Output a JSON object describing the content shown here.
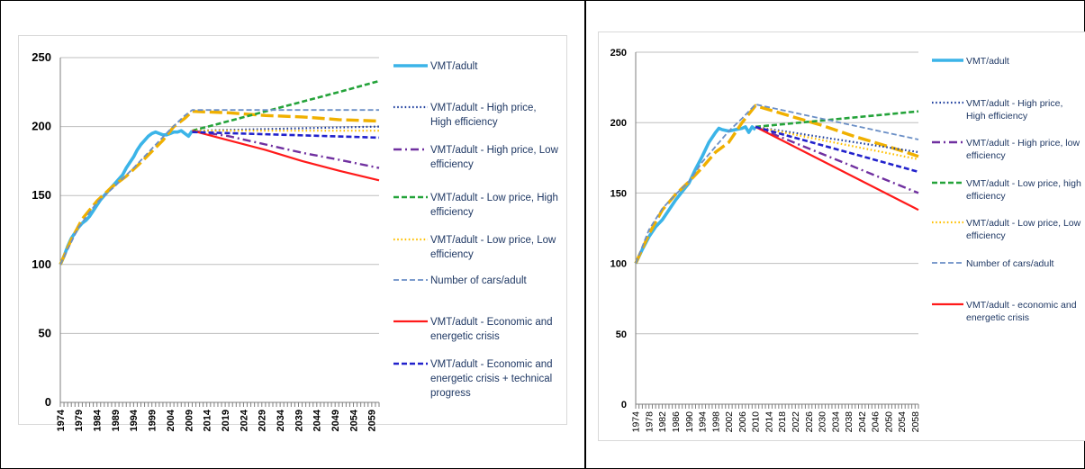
{
  "chart_data": [
    {
      "type": "line",
      "panel": "left",
      "x": [
        1974,
        1979,
        1984,
        1989,
        1994,
        1999,
        2004,
        2009,
        2014,
        2019,
        2024,
        2029,
        2034,
        2039,
        2044,
        2049,
        2054,
        2059,
        2061
      ],
      "x_tick_labels": [
        "1974",
        "1979",
        "1984",
        "1989",
        "1994",
        "1999",
        "2004",
        "2009",
        "2014",
        "2019",
        "2024",
        "2029",
        "2034",
        "2039",
        "2044",
        "2049",
        "2054",
        "2059"
      ],
      "y_tick_labels": [
        "0",
        "50",
        "100",
        "150",
        "200",
        "250"
      ],
      "ylim": [
        0,
        250
      ],
      "xlim": [
        1974,
        2061
      ],
      "grid": "horizontal",
      "legend_placement": "right",
      "series": [
        {
          "name": "VMT/adult",
          "color": "#3bb4e8",
          "style": "solid-thick",
          "points": [
            [
              1974,
              100
            ],
            [
              1975,
              106
            ],
            [
              1976,
              113
            ],
            [
              1977,
              119
            ],
            [
              1978,
              123
            ],
            [
              1979,
              127
            ],
            [
              1980,
              130
            ],
            [
              1981,
              132
            ],
            [
              1982,
              135
            ],
            [
              1983,
              139
            ],
            [
              1984,
              143
            ],
            [
              1985,
              147
            ],
            [
              1986,
              150
            ],
            [
              1987,
              153
            ],
            [
              1988,
              156
            ],
            [
              1989,
              159
            ],
            [
              1990,
              162
            ],
            [
              1991,
              165
            ],
            [
              1992,
              170
            ],
            [
              1993,
              174
            ],
            [
              1994,
              178
            ],
            [
              1995,
              183
            ],
            [
              1996,
              187
            ],
            [
              1997,
              190
            ],
            [
              1998,
              193
            ],
            [
              1999,
              195
            ],
            [
              2000,
              196
            ],
            [
              2001,
              195
            ],
            [
              2002,
              194
            ],
            [
              2003,
              194
            ],
            [
              2004,
              195
            ],
            [
              2005,
              196
            ],
            [
              2006,
              196
            ],
            [
              2007,
              197
            ],
            [
              2008,
              195
            ],
            [
              2009,
              193
            ],
            [
              2010,
              197
            ]
          ]
        },
        {
          "name": "VMT/adult - High price, High efficiency",
          "color": "#1f3f9e",
          "style": "dotted",
          "points": [
            [
              2010,
              197
            ],
            [
              2061,
              200
            ]
          ]
        },
        {
          "name": "VMT/adult - High price, Low efficiency",
          "color": "#7030a0",
          "style": "dashdot",
          "points": [
            [
              2010,
              197
            ],
            [
              2020,
              193
            ],
            [
              2030,
              187
            ],
            [
              2040,
              181
            ],
            [
              2050,
              176
            ],
            [
              2061,
              170
            ]
          ]
        },
        {
          "name": "VMT/adult - Low price, High efficiency",
          "color": "#24a33a",
          "style": "dashed",
          "points": [
            [
              2010,
              197
            ],
            [
              2020,
              204
            ],
            [
              2030,
              211
            ],
            [
              2040,
              218
            ],
            [
              2050,
              225
            ],
            [
              2061,
              233
            ]
          ]
        },
        {
          "name": "VMT/adult - Low price, Low efficiency",
          "color": "#ffc000",
          "style": "dotted",
          "points": [
            [
              2010,
              197
            ],
            [
              2061,
              197
            ]
          ]
        },
        {
          "name": "Number of cars/adult",
          "color": "#6b8fc6",
          "style": "dashed-thin",
          "points": [
            [
              1974,
              100
            ],
            [
              1979,
              127
            ],
            [
              1984,
              145
            ],
            [
              1989,
              157
            ],
            [
              1994,
              170
            ],
            [
              1999,
              184
            ],
            [
              2004,
              198
            ],
            [
              2008,
              208
            ],
            [
              2010,
              212
            ],
            [
              2061,
              212
            ]
          ]
        },
        {
          "name": "VMT/adult - Economic and energetic crisis",
          "color": "#ff1a1a",
          "style": "solid",
          "points": [
            [
              2010,
              197
            ],
            [
              2020,
              190
            ],
            [
              2030,
              183
            ],
            [
              2040,
              175
            ],
            [
              2050,
              168
            ],
            [
              2061,
              161
            ]
          ]
        },
        {
          "name": "VMT/adult - Economic and energetic crisis + technical progress",
          "color": "#2222cc",
          "style": "dashed",
          "points": [
            [
              2010,
              196
            ],
            [
              2061,
              192
            ]
          ]
        },
        {
          "name": "",
          "color": "#f0b000",
          "style": "longdash-thick",
          "points": [
            [
              1974,
              100
            ],
            [
              1977,
              118
            ],
            [
              1980,
              133
            ],
            [
              1984,
              146
            ],
            [
              1988,
              156
            ],
            [
              1992,
              164
            ],
            [
              1996,
              174
            ],
            [
              1999,
              182
            ],
            [
              2002,
              190
            ],
            [
              2005,
              200
            ],
            [
              2008,
              206
            ],
            [
              2010,
              211
            ],
            [
              2020,
              210
            ],
            [
              2030,
              208
            ],
            [
              2040,
              207
            ],
            [
              2050,
              205
            ],
            [
              2061,
              204
            ]
          ]
        }
      ],
      "legend": [
        {
          "label": "VMT/adult",
          "style": "solid-thick",
          "color": "#3bb4e8"
        },
        {
          "label": "VMT/adult - High price, High efficiency",
          "style": "dotted",
          "color": "#1f3f9e"
        },
        {
          "label": "VMT/adult - High price, Low efficiency",
          "style": "dashdot",
          "color": "#7030a0"
        },
        {
          "label": "VMT/adult - Low price, High efficiency",
          "style": "dashed",
          "color": "#24a33a"
        },
        {
          "label": "VMT/adult - Low price, Low efficiency",
          "style": "dotted",
          "color": "#ffc000"
        },
        {
          "label": "Number of cars/adult",
          "style": "dashed-thin",
          "color": "#6b8fc6"
        },
        {
          "label": "VMT/adult - Economic and energetic crisis",
          "style": "solid",
          "color": "#ff1a1a"
        },
        {
          "label": "VMT/adult - Economic and energetic crisis + technical progress",
          "style": "dashed",
          "color": "#2222cc"
        }
      ]
    },
    {
      "type": "line",
      "panel": "right",
      "x": [
        1974,
        1978,
        1982,
        1986,
        1990,
        1994,
        1998,
        2002,
        2006,
        2010,
        2014,
        2018,
        2022,
        2026,
        2030,
        2034,
        2038,
        2042,
        2046,
        2050,
        2054,
        2058,
        2059
      ],
      "x_tick_labels": [
        "1974",
        "1978",
        "1982",
        "1986",
        "1990",
        "1994",
        "1998",
        "2002",
        "2006",
        "2010",
        "2014",
        "2018",
        "2022",
        "2026",
        "2030",
        "2034",
        "2038",
        "2042",
        "2046",
        "2050",
        "2054",
        "2058"
      ],
      "y_tick_labels": [
        "0",
        "50",
        "100",
        "150",
        "200",
        "250"
      ],
      "ylim": [
        0,
        250
      ],
      "xlim": [
        1974,
        2059
      ],
      "grid": "horizontal",
      "legend_placement": "right",
      "series": [
        {
          "name": "VMT/adult",
          "color": "#3bb4e8",
          "style": "solid-thick",
          "points": [
            [
              1974,
              100
            ],
            [
              1976,
              110
            ],
            [
              1978,
              119
            ],
            [
              1980,
              126
            ],
            [
              1982,
              131
            ],
            [
              1984,
              138
            ],
            [
              1986,
              145
            ],
            [
              1988,
              151
            ],
            [
              1990,
              157
            ],
            [
              1992,
              167
            ],
            [
              1994,
              176
            ],
            [
              1996,
              186
            ],
            [
              1998,
              193
            ],
            [
              1999,
              196
            ],
            [
              2000,
              195
            ],
            [
              2002,
              194
            ],
            [
              2004,
              195
            ],
            [
              2006,
              196
            ],
            [
              2007,
              197
            ],
            [
              2008,
              193
            ],
            [
              2009,
              197
            ],
            [
              2010,
              195
            ]
          ]
        },
        {
          "name": "VMT/adult - High price, High efficiency",
          "color": "#1f3f9e",
          "style": "dotted",
          "points": [
            [
              2010,
              197
            ],
            [
              2059,
              179
            ]
          ]
        },
        {
          "name": "VMT/adult - High price, low efficiency",
          "color": "#7030a0",
          "style": "dashdot",
          "points": [
            [
              2010,
              197
            ],
            [
              2059,
              150
            ]
          ]
        },
        {
          "name": "VMT/adult - Low price, high efficiency",
          "color": "#24a33a",
          "style": "dashed",
          "points": [
            [
              2010,
              197
            ],
            [
              2059,
              208
            ]
          ]
        },
        {
          "name": "VMT/adult - Low price, Low efficiency",
          "color": "#ffc000",
          "style": "dotted",
          "points": [
            [
              2010,
              197
            ],
            [
              2059,
              174
            ]
          ]
        },
        {
          "name": "Number of cars/adult",
          "color": "#6b8fc6",
          "style": "dashed-thin",
          "points": [
            [
              1974,
              100
            ],
            [
              1978,
              124
            ],
            [
              1982,
              139
            ],
            [
              1986,
              149
            ],
            [
              1990,
              158
            ],
            [
              1994,
              172
            ],
            [
              1998,
              183
            ],
            [
              2002,
              194
            ],
            [
              2006,
              203
            ],
            [
              2010,
              213
            ],
            [
              2059,
              188
            ]
          ]
        },
        {
          "name": "VMT/adult - economic and energetic crisis",
          "color": "#ff1a1a",
          "style": "solid",
          "points": [
            [
              2010,
              197
            ],
            [
              2059,
              138
            ]
          ]
        },
        {
          "name": "",
          "color": "#2222cc",
          "style": "dashed",
          "points": [
            [
              2010,
              197
            ],
            [
              2059,
              165
            ]
          ]
        },
        {
          "name": "",
          "color": "#f0b000",
          "style": "longdash-thick",
          "points": [
            [
              1974,
              100
            ],
            [
              1978,
              121
            ],
            [
              1982,
              138
            ],
            [
              1986,
              149
            ],
            [
              1990,
              158
            ],
            [
              1994,
              168
            ],
            [
              1998,
              179
            ],
            [
              2002,
              186
            ],
            [
              2006,
              200
            ],
            [
              2010,
              212
            ],
            [
              2020,
              205
            ],
            [
              2030,
              198
            ],
            [
              2040,
              190
            ],
            [
              2050,
              183
            ],
            [
              2059,
              176
            ]
          ]
        }
      ],
      "legend": [
        {
          "label": "VMT/adult",
          "style": "solid-thick",
          "color": "#3bb4e8"
        },
        {
          "label": "VMT/adult - High price, High efficiency",
          "style": "dotted",
          "color": "#1f3f9e"
        },
        {
          "label": "VMT/adult - High price, low efficiency",
          "style": "dashdot",
          "color": "#7030a0"
        },
        {
          "label": "VMT/adult - Low price, high efficiency",
          "style": "dashed",
          "color": "#24a33a"
        },
        {
          "label": "VMT/adult - Low price, Low efficiency",
          "style": "dotted",
          "color": "#ffc000"
        },
        {
          "label": "Number of cars/adult",
          "style": "dashed-thin",
          "color": "#6b8fc6"
        },
        {
          "label": "VMT/adult - economic and energetic crisis",
          "style": "solid",
          "color": "#ff1a1a"
        }
      ]
    }
  ]
}
